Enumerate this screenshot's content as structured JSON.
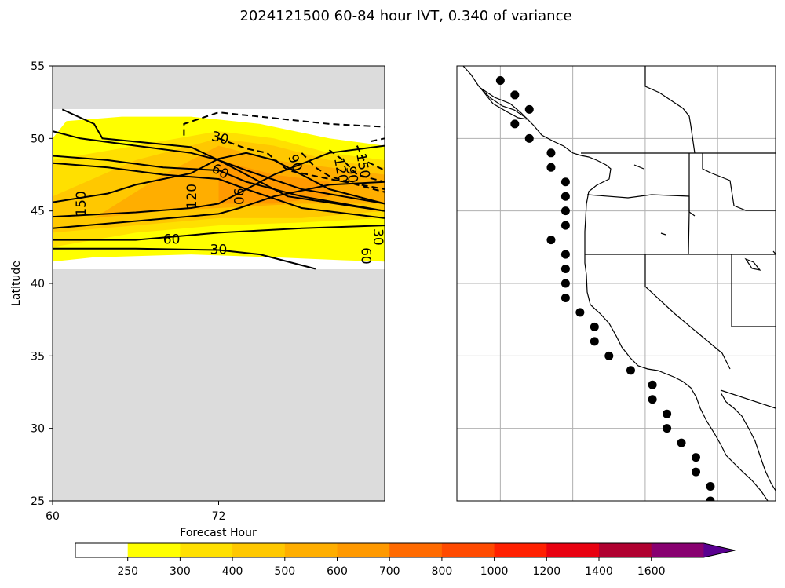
{
  "chart_data": [
    {
      "type": "contour",
      "title": "2024121500 60-84 hour IVT, 0.340 of variance",
      "xlabel": "Forecast Hour",
      "ylabel": "Latitude",
      "xlim": [
        60,
        84
      ],
      "ylim": [
        25,
        55
      ],
      "x_ticks": [
        "60",
        "72"
      ],
      "y_ticks": [
        "25",
        "30",
        "35",
        "40",
        "45",
        "50",
        "55"
      ],
      "background_color": "#dcdcdc",
      "data_latitude_range": [
        41,
        52
      ],
      "filled_bands": [
        {
          "min": 250,
          "max": 300,
          "color": "#ffff00",
          "polygon": [
            [
              60,
              41.5
            ],
            [
              63,
              41.8
            ],
            [
              70,
              42
            ],
            [
              76,
              41.8
            ],
            [
              81,
              41.6
            ],
            [
              84,
              41.5
            ],
            [
              84,
              49.5
            ],
            [
              80,
              50
            ],
            [
              75,
              51
            ],
            [
              70,
              51.5
            ],
            [
              65,
              51.5
            ],
            [
              61,
              51.2
            ],
            [
              60,
              50
            ]
          ]
        },
        {
          "min": 300,
          "max": 400,
          "color": "#ffe000",
          "polygon": [
            [
              60,
              42.5
            ],
            [
              66,
              43.5
            ],
            [
              72,
              44
            ],
            [
              78,
              44.2
            ],
            [
              84,
              44.5
            ],
            [
              84,
              48.5
            ],
            [
              80,
              49
            ],
            [
              76,
              50
            ],
            [
              72,
              50.5
            ],
            [
              66,
              49.5
            ],
            [
              60,
              48.5
            ]
          ]
        },
        {
          "min": 400,
          "max": 500,
          "color": "#ffc800",
          "polygon": [
            [
              60,
              43.5
            ],
            [
              66,
              44
            ],
            [
              72,
              44.5
            ],
            [
              78,
              44.5
            ],
            [
              84,
              45
            ],
            [
              84,
              48
            ],
            [
              80,
              48.5
            ],
            [
              76,
              49.5
            ],
            [
              72,
              50
            ],
            [
              66,
              48.5
            ],
            [
              60,
              46
            ]
          ]
        },
        {
          "min": 500,
          "max": 600,
          "color": "#ffae00",
          "polygon": [
            [
              63,
              44.5
            ],
            [
              68,
              45
            ],
            [
              72,
              45.2
            ],
            [
              78,
              45.5
            ],
            [
              84,
              45.5
            ],
            [
              84,
              47.5
            ],
            [
              80,
              48
            ],
            [
              76,
              48.5
            ],
            [
              72,
              49.5
            ],
            [
              68,
              47.5
            ]
          ]
        },
        {
          "min": 600,
          "max": 700,
          "color": "#ff9900",
          "polygon": [
            [
              72,
              45.5
            ],
            [
              76,
              45.5
            ],
            [
              80,
              46
            ],
            [
              80,
              47
            ],
            [
              76,
              47.5
            ],
            [
              72,
              48.5
            ]
          ]
        }
      ],
      "contours": [
        {
          "label": "30",
          "style": "solid",
          "points": [
            [
              60,
              42.4
            ],
            [
              66,
              42.4
            ],
            [
              72,
              42.3
            ],
            [
              75,
              42
            ],
            [
              79,
              41
            ]
          ]
        },
        {
          "label": "60",
          "style": "solid",
          "points": [
            [
              60,
              43
            ],
            [
              66,
              43
            ],
            [
              72,
              43.5
            ],
            [
              78,
              43.8
            ],
            [
              84,
              44
            ]
          ]
        },
        {
          "label": "90",
          "style": "solid",
          "points": [
            [
              60,
              43.8
            ],
            [
              66,
              44.3
            ],
            [
              72,
              44.8
            ],
            [
              73.5,
              45.2
            ],
            [
              76,
              46
            ],
            [
              80,
              46.8
            ],
            [
              84,
              47
            ]
          ]
        },
        {
          "label": "120",
          "style": "solid",
          "points": [
            [
              60,
              44.6
            ],
            [
              66,
              44.9
            ],
            [
              70,
              45.2
            ],
            [
              72,
              45.5
            ],
            [
              74,
              46.5
            ],
            [
              76,
              47.5
            ],
            [
              80,
              49
            ],
            [
              84,
              49.5
            ]
          ]
        },
        {
          "label": "150",
          "style": "solid",
          "points": [
            [
              60,
              45.6
            ],
            [
              64,
              46.2
            ],
            [
              66,
              46.8
            ],
            [
              70,
              47.6
            ],
            [
              72,
              48.6
            ],
            [
              74,
              49
            ],
            [
              76,
              48.5
            ],
            [
              80,
              46.5
            ],
            [
              84,
              45.5
            ]
          ]
        },
        {
          "label": "",
          "style": "solid",
          "points": [
            [
              60,
              48.3
            ],
            [
              64,
              48
            ],
            [
              68,
              47.5
            ],
            [
              72,
              47.2
            ],
            [
              74,
              46.5
            ],
            [
              78,
              45.2
            ],
            [
              84,
              44.5
            ]
          ]
        },
        {
          "label": "",
          "style": "solid",
          "points": [
            [
              60,
              48.8
            ],
            [
              64,
              48.5
            ],
            [
              68,
              48
            ],
            [
              72,
              47.8
            ],
            [
              74,
              47
            ],
            [
              78,
              46
            ],
            [
              84,
              45
            ]
          ]
        },
        {
          "label": "",
          "style": "solid",
          "points": [
            [
              60,
              50.5
            ],
            [
              62,
              50
            ],
            [
              66,
              49.5
            ],
            [
              70,
              49
            ],
            [
              72,
              48.5
            ],
            [
              74,
              47.8
            ],
            [
              78,
              46.5
            ],
            [
              84,
              45.5
            ]
          ]
        },
        {
          "label": "",
          "style": "solid",
          "points": [
            [
              60.7,
              52
            ],
            [
              63,
              51
            ],
            [
              63.6,
              50
            ],
            [
              70,
              49.4
            ],
            [
              72,
              48.5
            ],
            [
              74,
              47.5
            ],
            [
              77,
              46
            ],
            [
              84,
              45
            ]
          ]
        },
        {
          "label": "30",
          "style": "dashed",
          "points": [
            [
              69.5,
              50.2
            ],
            [
              69.5,
              51
            ],
            [
              72,
              51.8
            ],
            [
              76,
              51.4
            ],
            [
              80,
              51
            ],
            [
              84,
              50.8
            ]
          ]
        },
        {
          "label": "60",
          "style": "dashed",
          "points": [
            [
              72,
              50
            ],
            [
              74,
              49.3
            ],
            [
              75.5,
              49
            ],
            [
              77,
              47.8
            ],
            [
              80,
              47.2
            ],
            [
              84,
              46.5
            ]
          ]
        },
        {
          "label": "90",
          "style": "dashed",
          "points": [
            [
              78,
              49
            ],
            [
              79,
              48
            ],
            [
              80,
              47.4
            ],
            [
              82,
              46.8
            ],
            [
              84,
              46.3
            ]
          ]
        },
        {
          "label": "120",
          "style": "dashed",
          "points": [
            [
              80,
              49.2
            ],
            [
              81,
              48.5
            ],
            [
              82,
              47.5
            ],
            [
              84,
              47
            ]
          ]
        },
        {
          "label": "150",
          "style": "dashed",
          "points": [
            [
              82,
              49.5
            ],
            [
              82.5,
              48.5
            ],
            [
              84,
              47.8
            ]
          ]
        },
        {
          "label": "",
          "style": "dashed",
          "points": [
            [
              83,
              49.8
            ],
            [
              84,
              50
            ]
          ]
        },
        {
          "label": "30",
          "style": "solid",
          "points": [
            [
              84,
              43
            ]
          ]
        },
        {
          "label": "60",
          "style": "solid",
          "points": [
            [
              83,
              42.5
            ]
          ]
        }
      ],
      "inline_labels": [
        {
          "text": "150",
          "x": 62.1,
          "y": 45.5,
          "rotation": -90
        },
        {
          "text": "120",
          "x": 70.1,
          "y": 46,
          "rotation": -90
        },
        {
          "text": "90",
          "x": 73.4,
          "y": 46,
          "rotation": 90
        },
        {
          "text": "60",
          "x": 72.1,
          "y": 47.7,
          "rotation": 30
        },
        {
          "text": "60",
          "x": 68.6,
          "y": 43,
          "rotation": 0
        },
        {
          "text": "30",
          "x": 72,
          "y": 42.3,
          "rotation": 0
        },
        {
          "text": "30",
          "x": 72.1,
          "y": 50,
          "rotation": 15
        },
        {
          "text": "90",
          "x": 77.5,
          "y": 48.3,
          "rotation": 70
        },
        {
          "text": "120",
          "x": 80.8,
          "y": 47.8,
          "rotation": 80
        },
        {
          "text": "150",
          "x": 82.4,
          "y": 48.1,
          "rotation": 80
        },
        {
          "text": "90",
          "x": 81.6,
          "y": 47.5,
          "rotation": 80
        },
        {
          "text": "30",
          "x": 83.5,
          "y": 43.2,
          "rotation": 90
        },
        {
          "text": "60",
          "x": 82.6,
          "y": 41.9,
          "rotation": 90
        }
      ]
    },
    {
      "type": "map",
      "lon_range": [
        -136,
        -114
      ],
      "lat_range": [
        25,
        55
      ],
      "gridlines_lon": [
        -133,
        -128,
        -123,
        -118
      ],
      "gridlines_lat": [
        30,
        35,
        40,
        45,
        50
      ],
      "grid": true,
      "points": [
        [
          -133,
          54
        ],
        [
          -132,
          53
        ],
        [
          -131,
          52
        ],
        [
          -132,
          51
        ],
        [
          -131,
          50
        ],
        [
          -129.5,
          49
        ],
        [
          -129.5,
          48
        ],
        [
          -128.5,
          47
        ],
        [
          -128.5,
          46
        ],
        [
          -128.5,
          45
        ],
        [
          -128.5,
          44
        ],
        [
          -129.5,
          43
        ],
        [
          -128.5,
          42
        ],
        [
          -128.5,
          41
        ],
        [
          -128.5,
          40
        ],
        [
          -128.5,
          39
        ],
        [
          -127.5,
          38
        ],
        [
          -126.5,
          37
        ],
        [
          -126.5,
          36
        ],
        [
          -125.5,
          35
        ],
        [
          -124,
          34
        ],
        [
          -122.5,
          33
        ],
        [
          -122.5,
          32
        ],
        [
          -121.5,
          31
        ],
        [
          -121.5,
          30
        ],
        [
          -120.5,
          29
        ],
        [
          -119.5,
          28
        ],
        [
          -119.5,
          27
        ],
        [
          -118.5,
          26
        ],
        [
          -118.5,
          25
        ]
      ]
    },
    {
      "type": "colorbar",
      "ticks": [
        "250",
        "300",
        "400",
        "500",
        "600",
        "700",
        "800",
        "1000",
        "1200",
        "1400",
        "1600"
      ],
      "colors": [
        "#ffffff",
        "#ffff00",
        "#ffe000",
        "#ffc800",
        "#ffae00",
        "#ff9900",
        "#ff6a00",
        "#ff4a00",
        "#ff2000",
        "#e80010",
        "#b00030",
        "#880070",
        "#5a0090"
      ],
      "extend": "max"
    }
  ]
}
